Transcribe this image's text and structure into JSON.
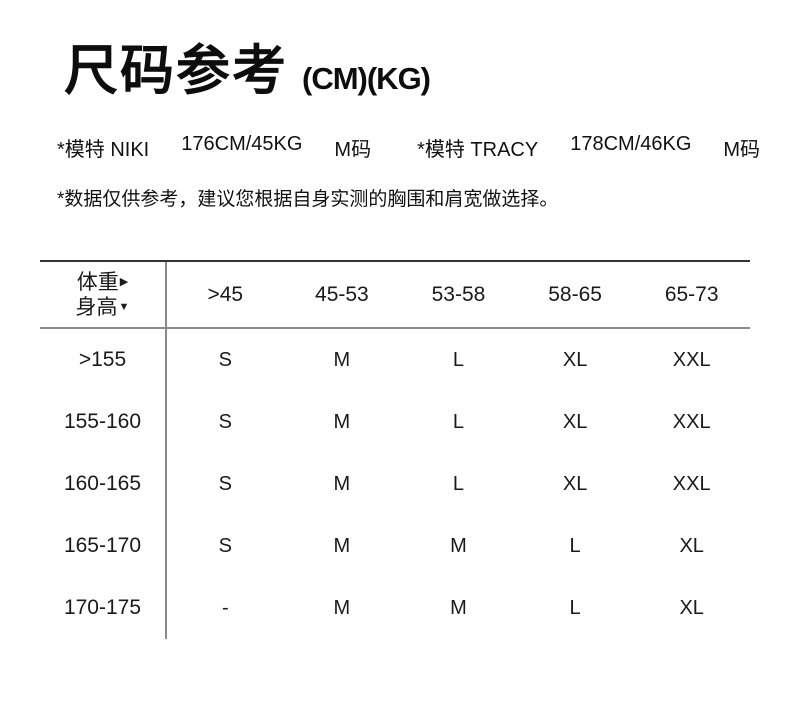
{
  "page": {
    "title": "尺码参考",
    "title_units": "(CM)(KG)"
  },
  "models": [
    {
      "label": "*模特 NIKI",
      "stats": "176CM/45KG",
      "size": "M码"
    },
    {
      "label": "*模特 TRACY",
      "stats": "178CM/46KG",
      "size": "M码"
    }
  ],
  "note": "*数据仅供参考，建议您根据自身实测的胸围和肩宽做选择。",
  "size_table": {
    "corner": {
      "col_axis_label": "体重",
      "col_axis_arrow": "▶",
      "row_axis_label": "身高",
      "row_axis_arrow": "▼"
    },
    "weight_columns": [
      ">45",
      "45-53",
      "53-58",
      "58-65",
      "65-73"
    ],
    "rows": [
      {
        "height": ">155",
        "sizes": [
          "S",
          "M",
          "L",
          "XL",
          "XXL"
        ]
      },
      {
        "height": "155-160",
        "sizes": [
          "S",
          "M",
          "L",
          "XL",
          "XXL"
        ]
      },
      {
        "height": "160-165",
        "sizes": [
          "S",
          "M",
          "L",
          "XL",
          "XXL"
        ]
      },
      {
        "height": "165-170",
        "sizes": [
          "S",
          "M",
          "M",
          "L",
          "XL"
        ]
      },
      {
        "height": "170-175",
        "sizes": [
          "-",
          "M",
          "M",
          "L",
          "XL"
        ]
      }
    ]
  },
  "colors": {
    "background": "#ffffff",
    "text": "#111111",
    "rule_dark": "#333333",
    "rule_gray": "#8a8a8a"
  }
}
